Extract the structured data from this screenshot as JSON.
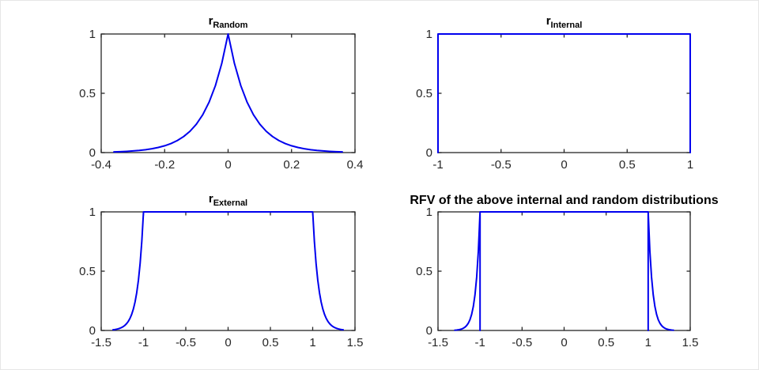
{
  "figure": {
    "background": "#ffffff",
    "axis_color": "#262626",
    "tick_label_color": "#262626",
    "curve_color": "#0000ee",
    "title_color": "#000000"
  },
  "chart_data": [
    {
      "id": "random",
      "type": "line",
      "title": {
        "base": "r",
        "sub": "Random"
      },
      "xlim": [
        -0.4,
        0.4
      ],
      "ylim": [
        0,
        1
      ],
      "xtick_values": [
        -0.4,
        -0.2,
        0,
        0.2,
        0.4
      ],
      "xtick_labels": [
        "-0.4",
        "-0.2",
        "0",
        "0.2",
        "0.4"
      ],
      "ytick_values": [
        0,
        0.5,
        1
      ],
      "ytick_labels": [
        "0",
        "0.5",
        "1"
      ],
      "grid": false,
      "legend": null,
      "series": [
        {
          "name": "random-membership",
          "points": [
            [
              -0.36,
              0.0058
            ],
            [
              -0.34,
              0.0078
            ],
            [
              -0.32,
              0.0103
            ],
            [
              -0.3,
              0.0138
            ],
            [
              -0.28,
              0.0183
            ],
            [
              -0.26,
              0.0244
            ],
            [
              -0.24,
              0.0324
            ],
            [
              -0.22,
              0.0432
            ],
            [
              -0.2,
              0.0574
            ],
            [
              -0.18,
              0.0764
            ],
            [
              -0.16,
              0.1017
            ],
            [
              -0.14,
              0.1353
            ],
            [
              -0.12,
              0.1801
            ],
            [
              -0.1,
              0.2396
            ],
            [
              -0.08,
              0.3189
            ],
            [
              -0.06,
              0.4244
            ],
            [
              -0.04,
              0.5647
            ],
            [
              -0.02,
              0.7515
            ],
            [
              0,
              1
            ],
            [
              0.02,
              0.7515
            ],
            [
              0.04,
              0.5647
            ],
            [
              0.06,
              0.4244
            ],
            [
              0.08,
              0.3189
            ],
            [
              0.1,
              0.2396
            ],
            [
              0.12,
              0.1801
            ],
            [
              0.14,
              0.1353
            ],
            [
              0.16,
              0.1017
            ],
            [
              0.18,
              0.0764
            ],
            [
              0.2,
              0.0574
            ],
            [
              0.22,
              0.0432
            ],
            [
              0.24,
              0.0324
            ],
            [
              0.26,
              0.0244
            ],
            [
              0.28,
              0.0183
            ],
            [
              0.3,
              0.0138
            ],
            [
              0.32,
              0.0103
            ],
            [
              0.34,
              0.0078
            ],
            [
              0.36,
              0.0058
            ]
          ]
        }
      ]
    },
    {
      "id": "internal",
      "type": "line",
      "title": {
        "base": "r",
        "sub": "Internal"
      },
      "xlim": [
        -1,
        1
      ],
      "ylim": [
        0,
        1
      ],
      "xtick_values": [
        -1,
        -0.5,
        0,
        0.5,
        1
      ],
      "xtick_labels": [
        "-1",
        "-0.5",
        "0",
        "0.5",
        "1"
      ],
      "ytick_values": [
        0,
        0.5,
        1
      ],
      "ytick_labels": [
        "0",
        "0.5",
        "1"
      ],
      "grid": false,
      "legend": null,
      "series": [
        {
          "name": "internal-membership",
          "points": [
            [
              -1,
              0
            ],
            [
              -1,
              1
            ],
            [
              1,
              1
            ],
            [
              1,
              0
            ]
          ]
        }
      ]
    },
    {
      "id": "external",
      "type": "line",
      "title": {
        "base": "r",
        "sub": "External"
      },
      "xlim": [
        -1.5,
        1.5
      ],
      "ylim": [
        0,
        1
      ],
      "xtick_values": [
        -1.5,
        -1,
        -0.5,
        0,
        0.5,
        1,
        1.5
      ],
      "xtick_labels": [
        "-1.5",
        "-1",
        "-0.5",
        "0",
        "0.5",
        "1",
        "1.5"
      ],
      "ytick_values": [
        0,
        0.5,
        1
      ],
      "ytick_labels": [
        "0",
        "0.5",
        "1"
      ],
      "grid": false,
      "legend": null,
      "series": [
        {
          "name": "external-membership",
          "points": [
            [
              -1.36,
              0.0058
            ],
            [
              -1.34,
              0.0078
            ],
            [
              -1.32,
              0.0103
            ],
            [
              -1.3,
              0.0138
            ],
            [
              -1.28,
              0.0183
            ],
            [
              -1.26,
              0.0244
            ],
            [
              -1.24,
              0.0324
            ],
            [
              -1.22,
              0.0432
            ],
            [
              -1.2,
              0.0574
            ],
            [
              -1.18,
              0.0764
            ],
            [
              -1.16,
              0.1017
            ],
            [
              -1.14,
              0.1353
            ],
            [
              -1.12,
              0.1801
            ],
            [
              -1.1,
              0.2396
            ],
            [
              -1.08,
              0.3189
            ],
            [
              -1.06,
              0.4244
            ],
            [
              -1.04,
              0.5647
            ],
            [
              -1.02,
              0.7515
            ],
            [
              -1,
              1
            ],
            [
              1,
              1
            ],
            [
              1.02,
              0.7515
            ],
            [
              1.04,
              0.5647
            ],
            [
              1.06,
              0.4244
            ],
            [
              1.08,
              0.3189
            ],
            [
              1.1,
              0.2396
            ],
            [
              1.12,
              0.1801
            ],
            [
              1.14,
              0.1353
            ],
            [
              1.16,
              0.1017
            ],
            [
              1.18,
              0.0764
            ],
            [
              1.2,
              0.0574
            ],
            [
              1.22,
              0.0432
            ],
            [
              1.24,
              0.0324
            ],
            [
              1.26,
              0.0244
            ],
            [
              1.28,
              0.0183
            ],
            [
              1.3,
              0.0138
            ],
            [
              1.32,
              0.0103
            ],
            [
              1.34,
              0.0078
            ],
            [
              1.36,
              0.0058
            ]
          ]
        }
      ]
    },
    {
      "id": "rfv",
      "type": "line",
      "title": {
        "text": "RFV of the above internal and random distributions"
      },
      "xlim": [
        -1.5,
        1.5
      ],
      "ylim": [
        0,
        1
      ],
      "xtick_values": [
        -1.5,
        -1,
        -0.5,
        0,
        0.5,
        1,
        1.5
      ],
      "xtick_labels": [
        "-1.5",
        "-1",
        "-0.5",
        "0",
        "0.5",
        "1",
        "1.5"
      ],
      "ytick_values": [
        0,
        0.5,
        1
      ],
      "ytick_labels": [
        "0",
        "0.5",
        "1"
      ],
      "grid": false,
      "legend": null,
      "series": [
        {
          "name": "rfv-membership",
          "points": [
            [
              -1.3,
              0.0025
            ],
            [
              -1.28,
              0.0037
            ],
            [
              -1.26,
              0.0055
            ],
            [
              -1.24,
              0.0082
            ],
            [
              -1.22,
              0.0123
            ],
            [
              -1.2,
              0.0183
            ],
            [
              -1.18,
              0.0273
            ],
            [
              -1.16,
              0.0408
            ],
            [
              -1.14,
              0.0608
            ],
            [
              -1.12,
              0.0907
            ],
            [
              -1.1,
              0.1353
            ],
            [
              -1.08,
              0.2019
            ],
            [
              -1.06,
              0.3012
            ],
            [
              -1.04,
              0.4493
            ],
            [
              -1.02,
              0.6703
            ],
            [
              -1,
              1
            ],
            [
              -1,
              0
            ],
            [
              -1,
              1
            ],
            [
              1,
              1
            ],
            [
              1,
              0
            ],
            [
              1,
              1
            ],
            [
              1.02,
              0.6703
            ],
            [
              1.04,
              0.4493
            ],
            [
              1.06,
              0.3012
            ],
            [
              1.08,
              0.2019
            ],
            [
              1.1,
              0.1353
            ],
            [
              1.12,
              0.0907
            ],
            [
              1.14,
              0.0608
            ],
            [
              1.16,
              0.0408
            ],
            [
              1.18,
              0.0273
            ],
            [
              1.2,
              0.0183
            ],
            [
              1.22,
              0.0123
            ],
            [
              1.24,
              0.0082
            ],
            [
              1.26,
              0.0055
            ],
            [
              1.28,
              0.0037
            ],
            [
              1.3,
              0.0025
            ]
          ]
        }
      ]
    }
  ]
}
